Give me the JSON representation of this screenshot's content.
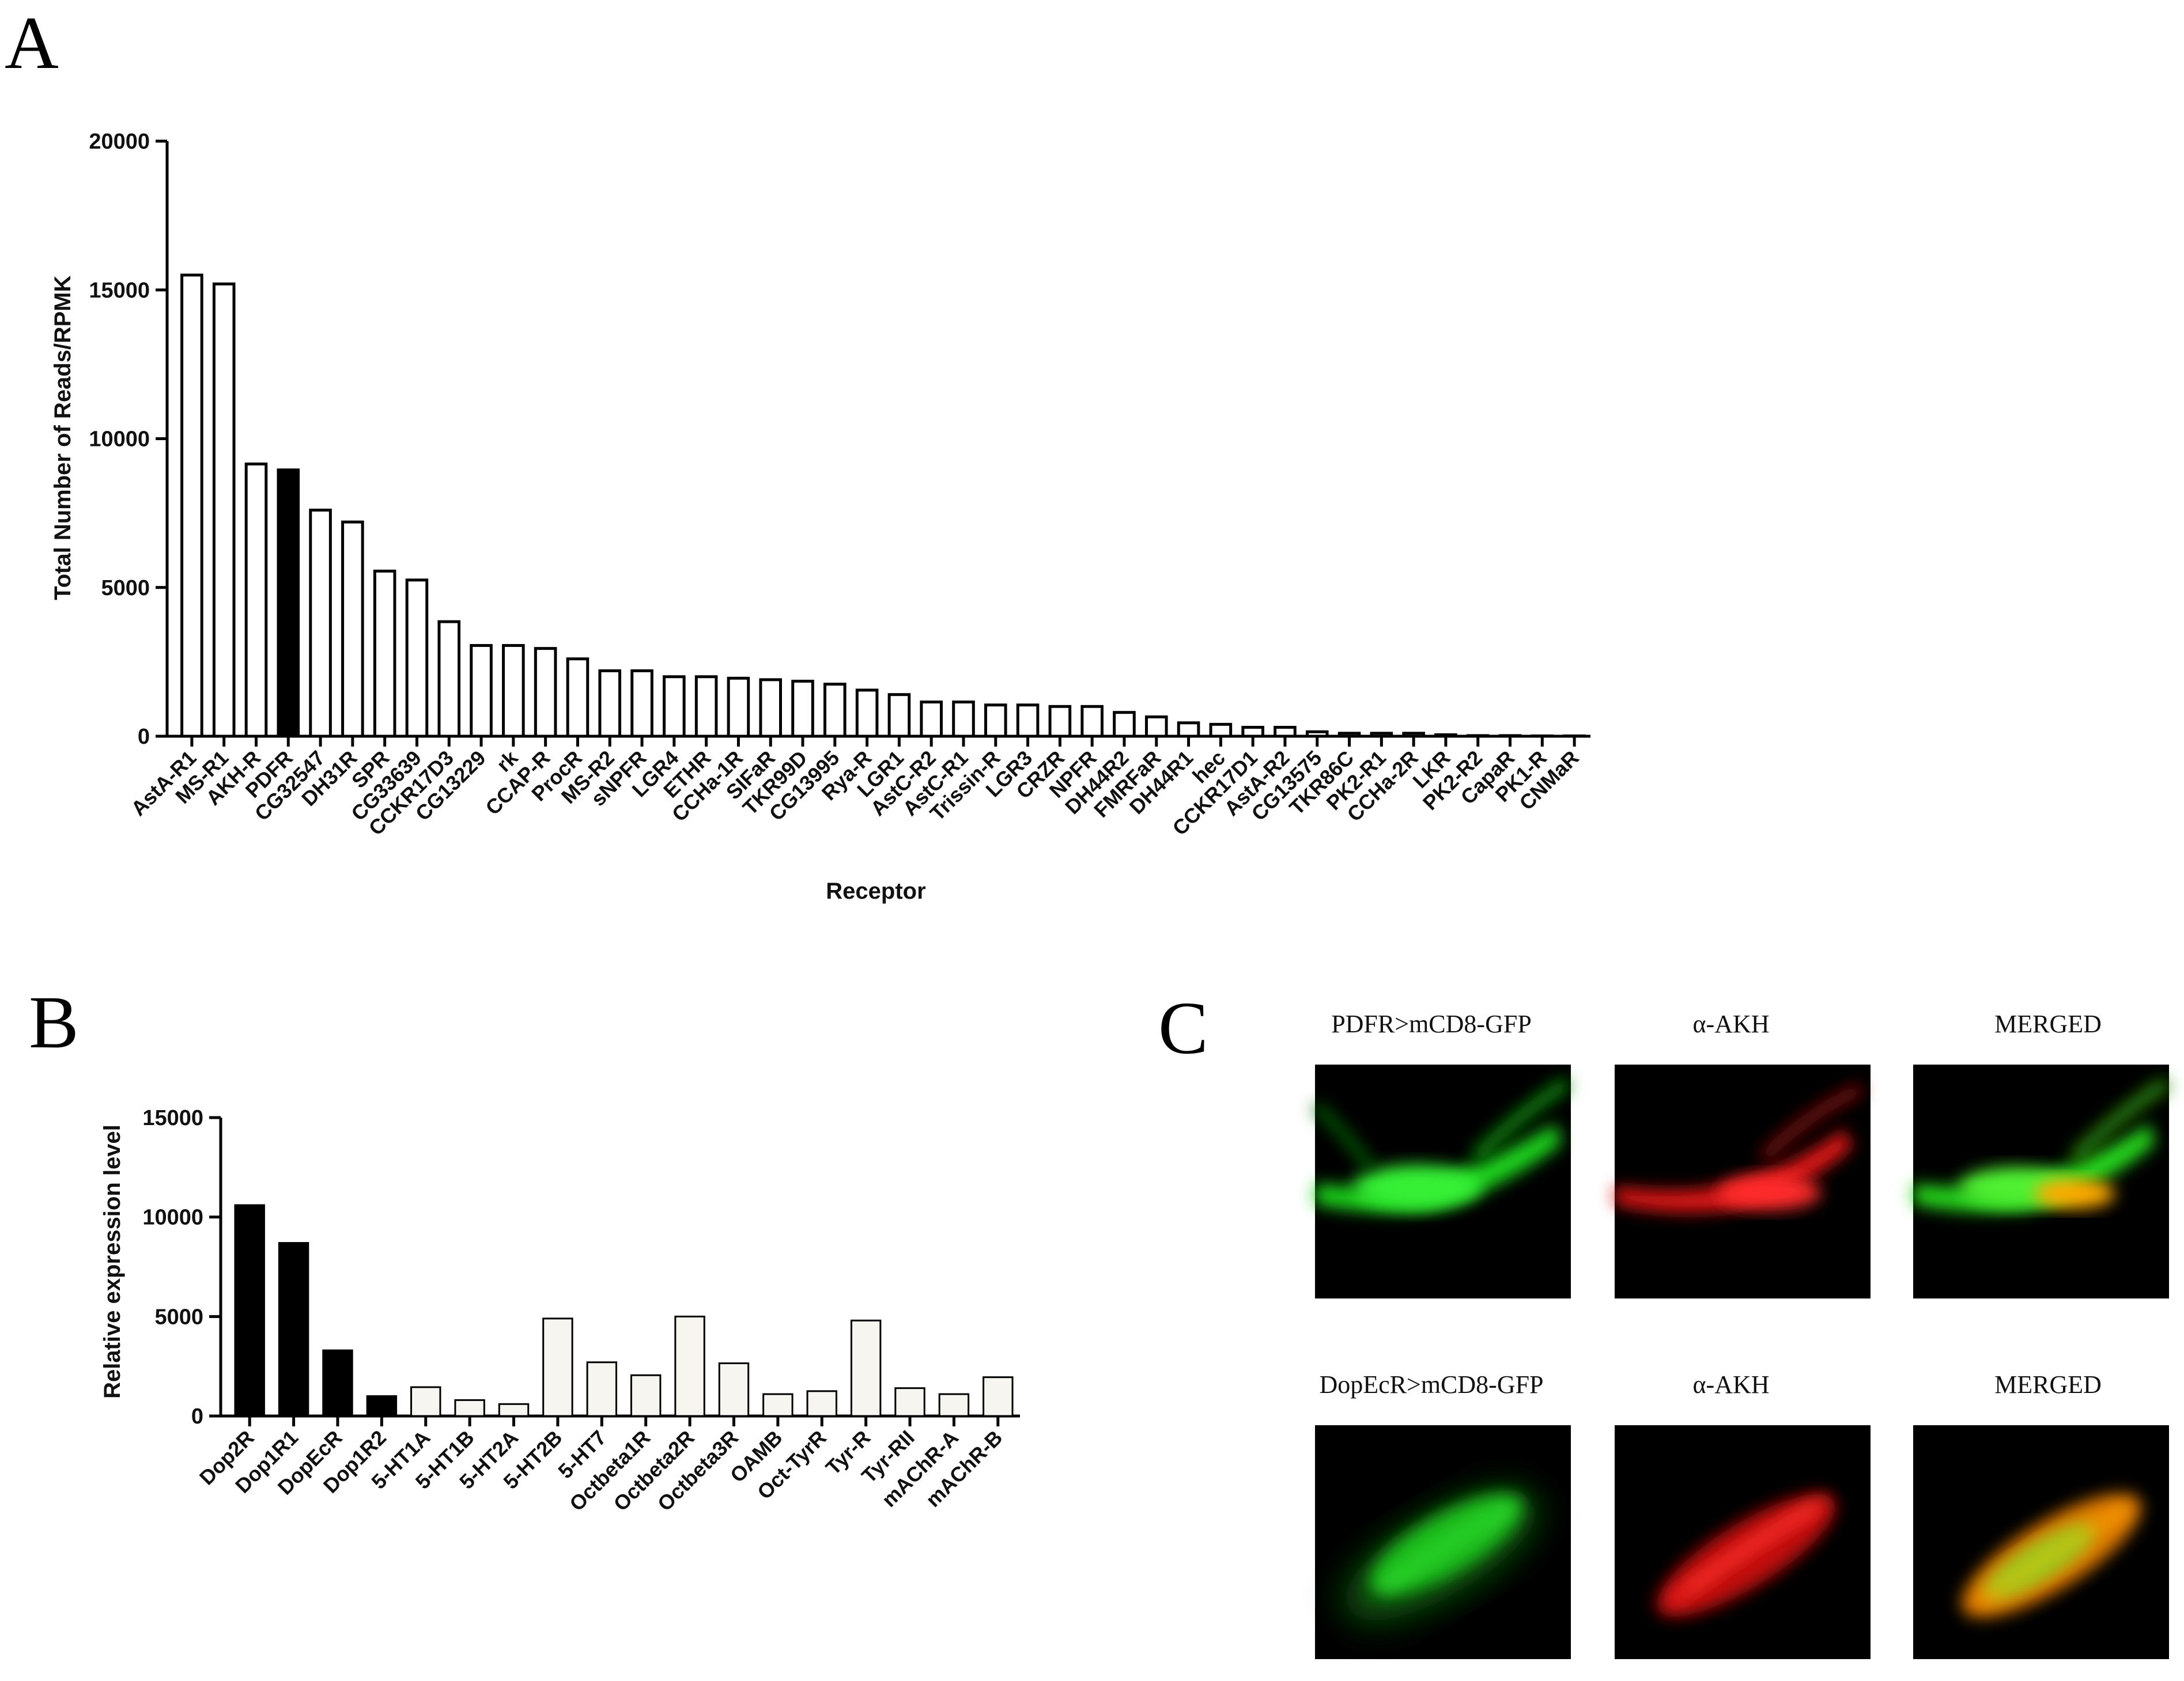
{
  "panels": {
    "a": "A",
    "b": "B",
    "c": "C"
  },
  "chart_data": [
    {
      "id": "A",
      "type": "bar",
      "title": "",
      "xlabel": "Receptor",
      "ylabel": "Total Number of Reads/RPMK",
      "ylim": [
        0,
        20000
      ],
      "yticks": [
        "0",
        "5000",
        "10000",
        "15000",
        "20000"
      ],
      "categories": [
        "AstA-R1",
        "MS-R1",
        "AKH-R",
        "PDFR",
        "CG32547",
        "DH31R",
        "SPR",
        "CG33639",
        "CCKR17D3",
        "CG13229",
        "rk",
        "CCAP-R",
        "ProcR",
        "MS-R2",
        "sNPFR",
        "LGR4",
        "ETHR",
        "CCHa-1R",
        "SIFaR",
        "TKR99D",
        "CG13995",
        "Rya-R",
        "LGR1",
        "AstC-R2",
        "AstC-R1",
        "Trissin-R",
        "LGR3",
        "CRZR",
        "NPFR",
        "DH44R2",
        "FMRFaR",
        "DH44R1",
        "hec",
        "CCKR17D1",
        "AstA-R2",
        "CG13575",
        "TKR86C",
        "PK2-R1",
        "CCHa-2R",
        "LKR",
        "PK2-R2",
        "CapaR",
        "PK1-R",
        "CNMaR"
      ],
      "values": [
        15500,
        15200,
        9150,
        8950,
        7600,
        7200,
        5550,
        5250,
        3850,
        3050,
        3050,
        2950,
        2600,
        2200,
        2200,
        2000,
        2000,
        1950,
        1900,
        1850,
        1750,
        1550,
        1400,
        1150,
        1150,
        1050,
        1050,
        1000,
        1000,
        800,
        650,
        450,
        400,
        300,
        300,
        150,
        100,
        100,
        100,
        50,
        20,
        20,
        10,
        10
      ],
      "highlight": [
        3
      ],
      "bar_colors": {
        "normal": "#ffffff",
        "highlight": "#000000"
      },
      "grid": false,
      "legend": "none"
    },
    {
      "id": "B",
      "type": "bar",
      "title": "",
      "xlabel": "",
      "ylabel": "Relative expression level",
      "ylim": [
        0,
        15000
      ],
      "yticks": [
        "0",
        "5000",
        "10000",
        "15000"
      ],
      "categories": [
        "Dop2R",
        "Dop1R1",
        "DopEcR",
        "Dop1R2",
        "5-HT1A",
        "5-HT1B",
        "5-HT2A",
        "5-HT2B",
        "5-HT7",
        "Octbeta1R",
        "Octbeta2R",
        "Octbeta3R",
        "OAMB",
        "Oct-TyrR",
        "Tyr-R",
        "Tyr-RII",
        "mAChR-A",
        "mAChR-B"
      ],
      "values": [
        10600,
        8700,
        3300,
        1000,
        1450,
        800,
        600,
        4900,
        2700,
        2050,
        5000,
        2650,
        1100,
        1250,
        4800,
        1400,
        1100,
        1950
      ],
      "dark": [
        0,
        1,
        2,
        3
      ],
      "bar_colors": {
        "dark": "#000000",
        "light": "#f7f5f0"
      },
      "grid": false,
      "legend": "none"
    }
  ],
  "micrographs": {
    "row1": [
      "PDFR>mCD8-GFP",
      "α-AKH",
      "MERGED"
    ],
    "row2": [
      "DopEcR>mCD8-GFP",
      "α-AKH",
      "MERGED"
    ],
    "colors": {
      "green": "#22e022",
      "red": "#ff1a1a",
      "merged": "#ffaa00",
      "background": "#000000"
    }
  }
}
